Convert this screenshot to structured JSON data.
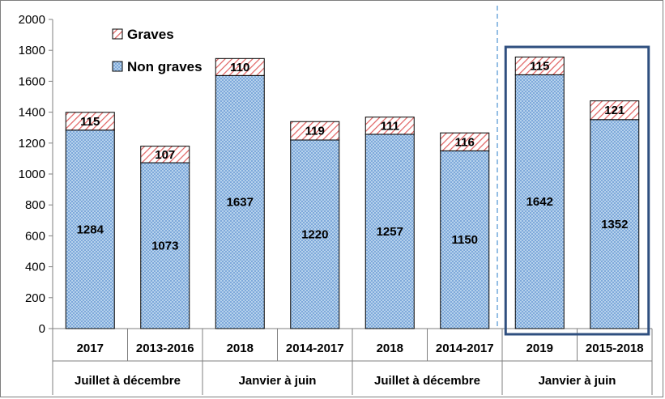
{
  "chart_data": {
    "type": "bar",
    "stacked": true,
    "categories": [
      "2017",
      "2013-2016",
      "2018",
      "2014-2017",
      "2018",
      "2014-2017",
      "2019",
      "2015-2018"
    ],
    "groups": [
      {
        "label": "Juillet à décembre",
        "span": 2
      },
      {
        "label": "Janvier à juin",
        "span": 2
      },
      {
        "label": "Juillet à décembre",
        "span": 2
      },
      {
        "label": "Janvier à juin",
        "span": 2
      }
    ],
    "series": [
      {
        "name": "Non graves",
        "values": [
          1284,
          1073,
          1637,
          1220,
          1257,
          1150,
          1642,
          1352
        ],
        "color": "#9dc3e6",
        "pattern": "cross-hatch"
      },
      {
        "name": "Graves",
        "values": [
          115,
          107,
          110,
          119,
          111,
          116,
          115,
          121
        ],
        "color": "#e06666",
        "pattern": "diagonal-stripes"
      }
    ],
    "ylim": [
      0,
      2000
    ],
    "yticks": [
      0,
      200,
      400,
      600,
      800,
      1000,
      1200,
      1400,
      1600,
      1800,
      2000
    ],
    "grid": false,
    "legend": "top-left",
    "highlight_categories": [
      6,
      7
    ],
    "highlight_color": "#2f4f7f",
    "separator_dashed_color": "#5b9bd5"
  }
}
